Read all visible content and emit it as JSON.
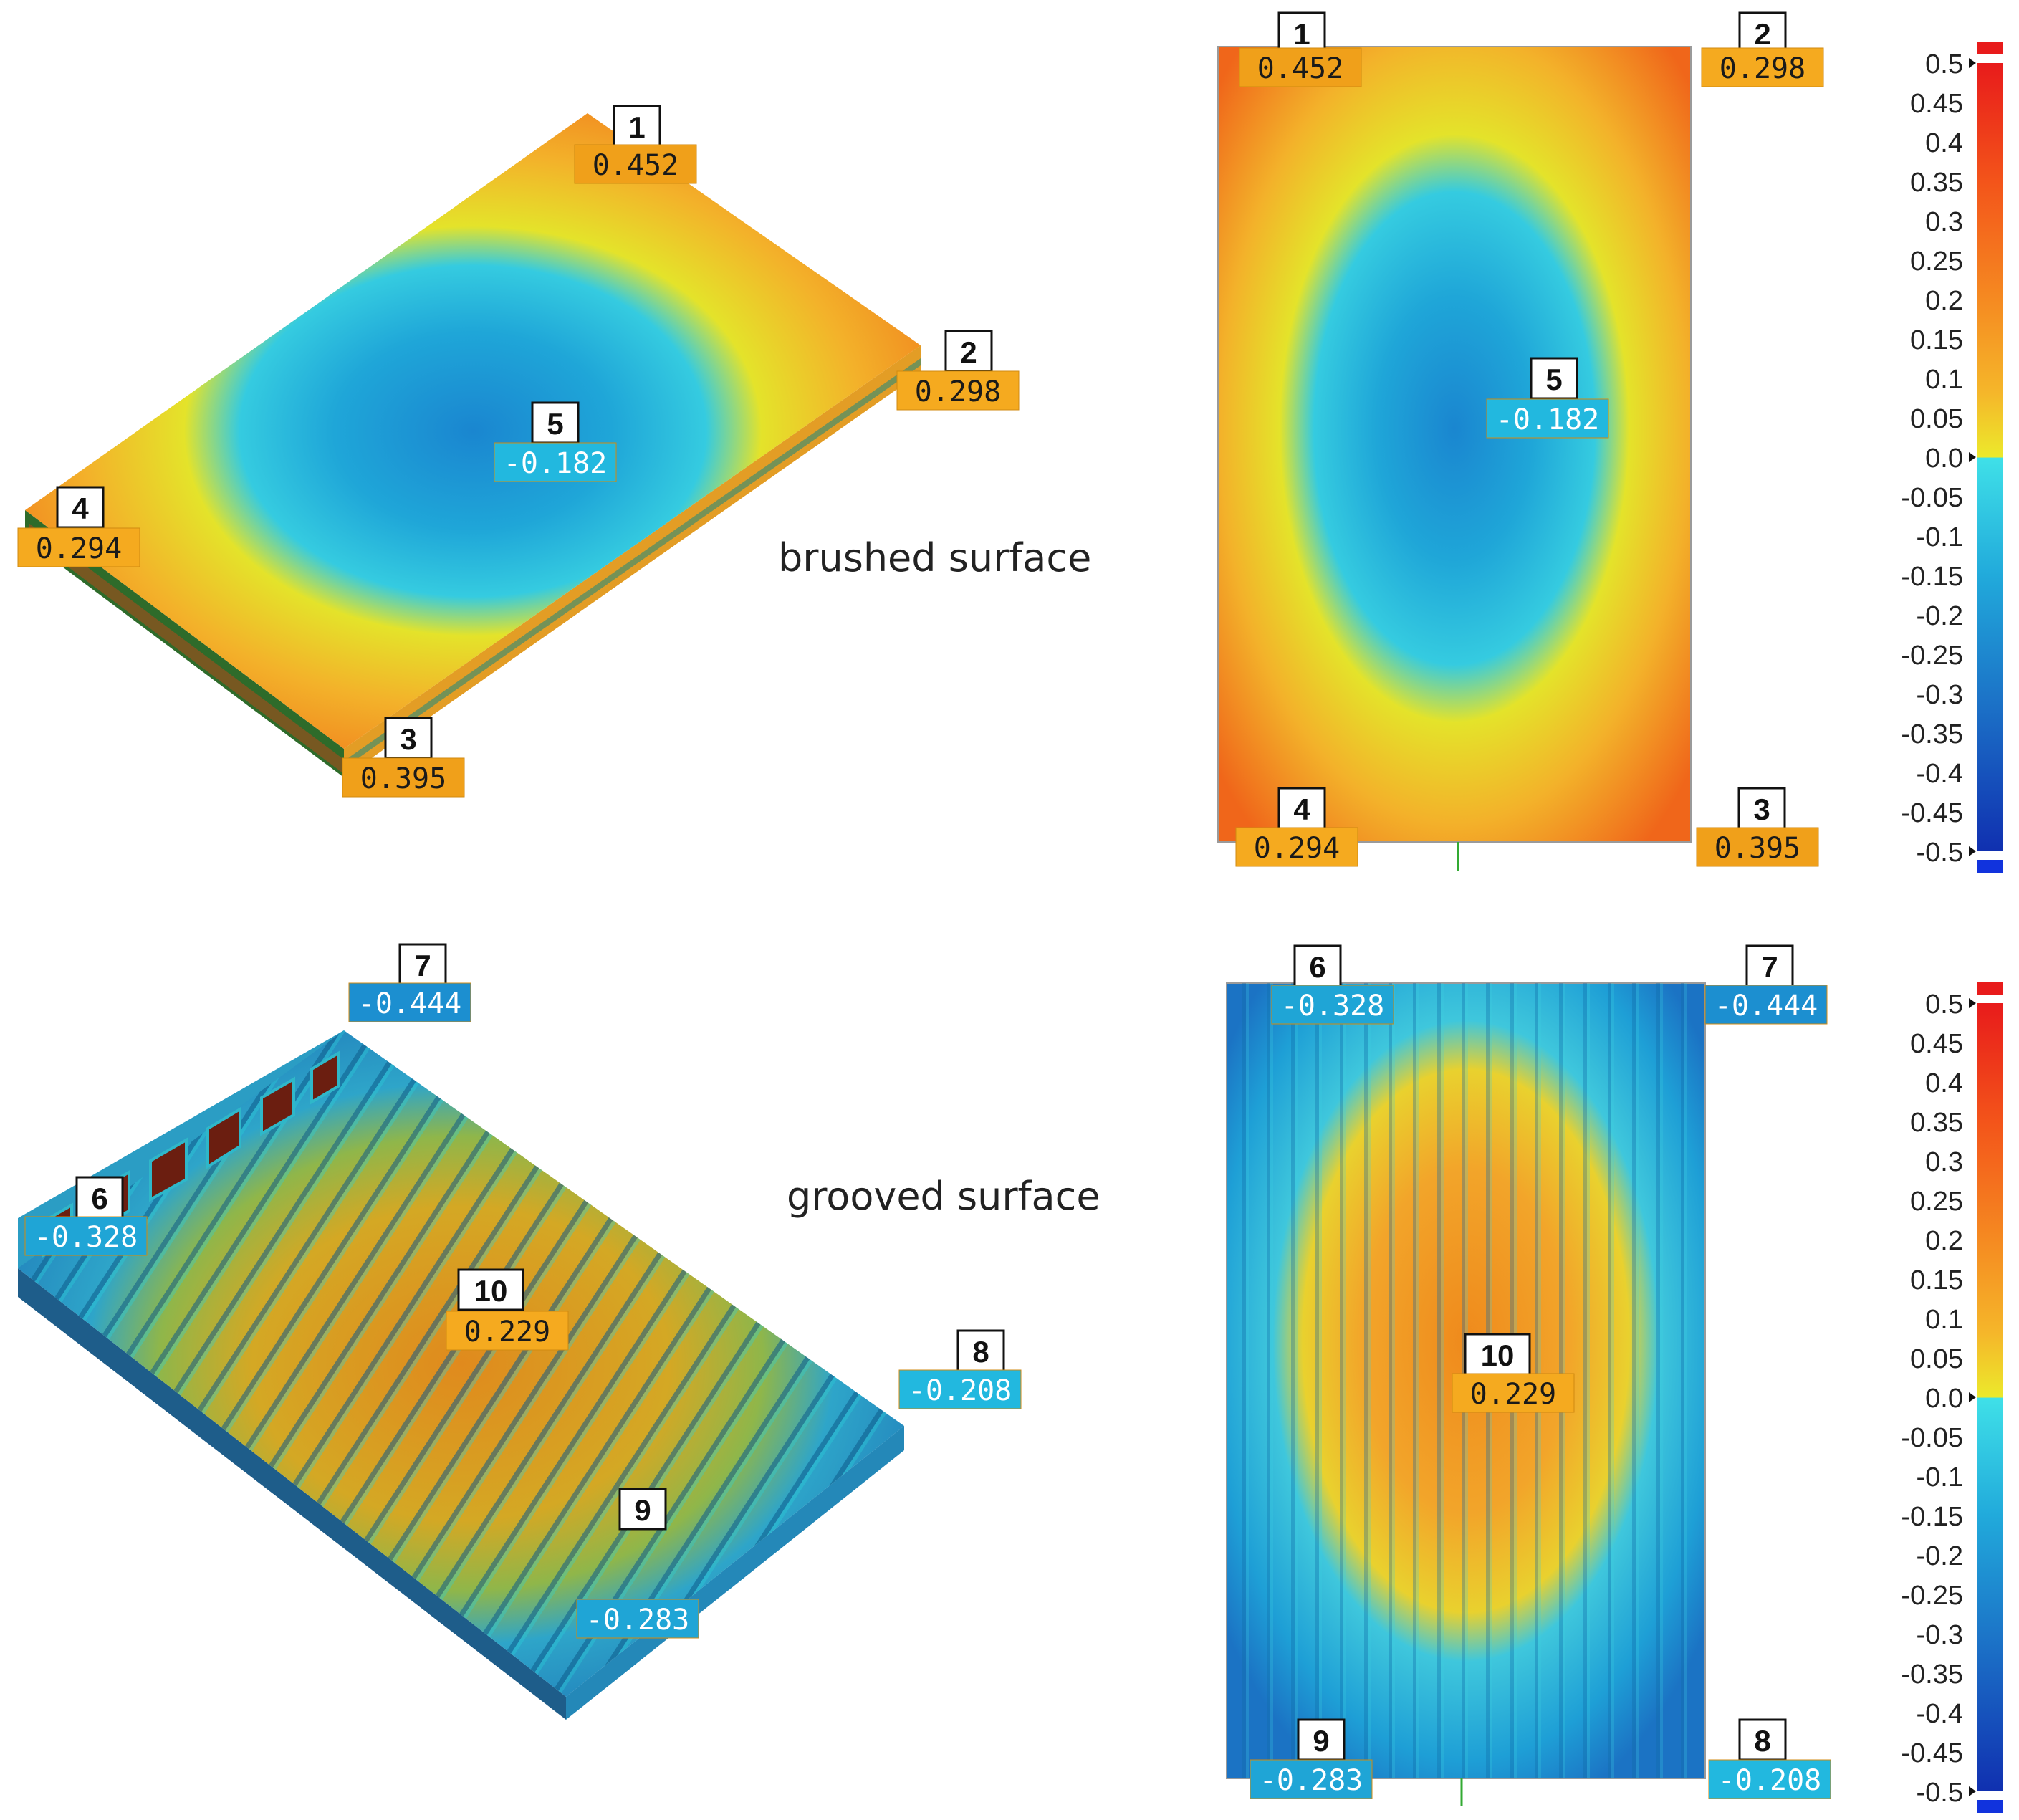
{
  "captions": {
    "brushed": "brushed surface",
    "grooved": "grooved surface"
  },
  "colors": {
    "high": "#f05a14",
    "mid_high": "#f5a623",
    "zero": "#e8e227",
    "mid_low": "#33c9dd",
    "low": "#1a7cc8",
    "deep": "#0033aa"
  },
  "colorbar": {
    "ticks": [
      "0.5",
      "0.45",
      "0.4",
      "0.35",
      "0.3",
      "0.25",
      "0.2",
      "0.15",
      "0.1",
      "0.05",
      "0.0",
      "-0.05",
      "-0.1",
      "-0.15",
      "-0.2",
      "-0.25",
      "-0.3",
      "-0.35",
      "-0.4",
      "-0.45",
      "-0.5"
    ],
    "range": [
      -0.5,
      0.5
    ]
  },
  "brushed": {
    "points": [
      {
        "id": "1",
        "value": "0.452"
      },
      {
        "id": "2",
        "value": "0.298"
      },
      {
        "id": "3",
        "value": "0.395"
      },
      {
        "id": "4",
        "value": "0.294"
      },
      {
        "id": "5",
        "value": "-0.182"
      }
    ]
  },
  "grooved": {
    "points": [
      {
        "id": "6",
        "value": "-0.328"
      },
      {
        "id": "7",
        "value": "-0.444"
      },
      {
        "id": "8",
        "value": "-0.208"
      },
      {
        "id": "9",
        "value": "-0.283"
      },
      {
        "id": "10",
        "value": "0.229"
      }
    ]
  }
}
